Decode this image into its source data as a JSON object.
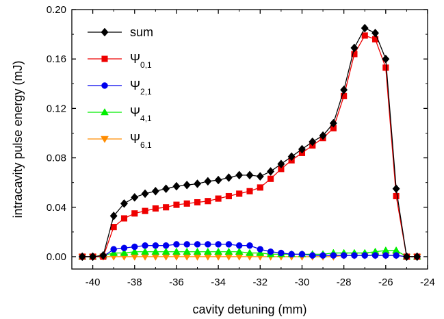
{
  "chart_data": {
    "type": "line",
    "xlabel": "cavity detuning (mm)",
    "ylabel": "intracavity pulse energy (mJ)",
    "xlim": [
      -41,
      -24
    ],
    "ylim": [
      -0.01,
      0.2
    ],
    "xticks": [
      -40,
      -38,
      -36,
      -34,
      -32,
      -30,
      -28,
      -26,
      -24
    ],
    "yticks": [
      0.0,
      0.04,
      0.08,
      0.12,
      0.16,
      0.2
    ],
    "xtick_labels": [
      "-40",
      "-38",
      "-36",
      "-34",
      "-32",
      "-30",
      "-28",
      "-26",
      "-24"
    ],
    "ytick_labels": [
      "0.00",
      "0.04",
      "0.08",
      "0.12",
      "0.16",
      "0.20"
    ],
    "grid": false,
    "legend_position": "top-left",
    "series": [
      {
        "name": "sum",
        "label_main": "sum",
        "label_sub": "",
        "color": "#000000",
        "marker": "diamond",
        "x": [
          -40.5,
          -40.0,
          -39.5,
          -39.0,
          -38.5,
          -38.0,
          -37.5,
          -37.0,
          -36.5,
          -36.0,
          -35.5,
          -35.0,
          -34.5,
          -34.0,
          -33.5,
          -33.0,
          -32.5,
          -32.0,
          -31.5,
          -31.0,
          -30.5,
          -30.0,
          -29.5,
          -29.0,
          -28.5,
          -28.0,
          -27.5,
          -27.0,
          -26.5,
          -26.0,
          -25.5,
          -25.0,
          -24.5
        ],
        "y": [
          0.0,
          0.0,
          0.001,
          0.033,
          0.043,
          0.048,
          0.051,
          0.053,
          0.055,
          0.057,
          0.058,
          0.059,
          0.061,
          0.062,
          0.064,
          0.066,
          0.066,
          0.065,
          0.069,
          0.075,
          0.081,
          0.087,
          0.093,
          0.098,
          0.108,
          0.135,
          0.169,
          0.185,
          0.181,
          0.16,
          0.055,
          0.0,
          0.0
        ]
      },
      {
        "name": "Ψ0,1",
        "label_main": "Ψ",
        "label_sub": "0,1",
        "color": "#ee0000",
        "marker": "square",
        "x": [
          -40.5,
          -40.0,
          -39.5,
          -39.0,
          -38.5,
          -38.0,
          -37.5,
          -37.0,
          -36.5,
          -36.0,
          -35.5,
          -35.0,
          -34.5,
          -34.0,
          -33.5,
          -33.0,
          -32.5,
          -32.0,
          -31.5,
          -31.0,
          -30.5,
          -30.0,
          -29.5,
          -29.0,
          -28.5,
          -28.0,
          -27.5,
          -27.0,
          -26.5,
          -26.0,
          -25.5,
          -25.0,
          -24.5
        ],
        "y": [
          0.0,
          0.0,
          0.0,
          0.024,
          0.031,
          0.035,
          0.037,
          0.039,
          0.04,
          0.042,
          0.043,
          0.044,
          0.045,
          0.047,
          0.049,
          0.051,
          0.053,
          0.056,
          0.063,
          0.071,
          0.078,
          0.084,
          0.09,
          0.096,
          0.104,
          0.13,
          0.164,
          0.179,
          0.176,
          0.153,
          0.049,
          0.0,
          0.0
        ]
      },
      {
        "name": "Ψ2,1",
        "label_main": "Ψ",
        "label_sub": "2,1",
        "color": "#0000ee",
        "marker": "circle",
        "x": [
          -40.5,
          -40.0,
          -39.5,
          -39.0,
          -38.5,
          -38.0,
          -37.5,
          -37.0,
          -36.5,
          -36.0,
          -35.5,
          -35.0,
          -34.5,
          -34.0,
          -33.5,
          -33.0,
          -32.5,
          -32.0,
          -31.5,
          -31.0,
          -30.5,
          -30.0,
          -29.5,
          -29.0,
          -28.5,
          -28.0,
          -27.5,
          -27.0,
          -26.5,
          -26.0,
          -25.5,
          -25.0,
          -24.5
        ],
        "y": [
          0.0,
          0.0,
          0.0,
          0.006,
          0.007,
          0.008,
          0.009,
          0.009,
          0.009,
          0.01,
          0.01,
          0.01,
          0.01,
          0.01,
          0.01,
          0.009,
          0.009,
          0.006,
          0.004,
          0.003,
          0.002,
          0.002,
          0.001,
          0.001,
          0.001,
          0.001,
          0.001,
          0.001,
          0.001,
          0.001,
          0.001,
          0.0,
          0.0
        ]
      },
      {
        "name": "Ψ4,1",
        "label_main": "Ψ",
        "label_sub": "4,1",
        "color": "#00ee00",
        "marker": "triangle-up",
        "x": [
          -40.5,
          -40.0,
          -39.5,
          -39.0,
          -38.5,
          -38.0,
          -37.5,
          -37.0,
          -36.5,
          -36.0,
          -35.5,
          -35.0,
          -34.5,
          -34.0,
          -33.5,
          -33.0,
          -32.5,
          -32.0,
          -31.5,
          -31.0,
          -30.5,
          -30.0,
          -29.5,
          -29.0,
          -28.5,
          -28.0,
          -27.5,
          -27.0,
          -26.5,
          -26.0,
          -25.5,
          -25.0,
          -24.5
        ],
        "y": [
          0.0,
          0.0,
          0.001,
          0.003,
          0.003,
          0.004,
          0.004,
          0.004,
          0.004,
          0.004,
          0.004,
          0.004,
          0.004,
          0.004,
          0.004,
          0.004,
          0.003,
          0.003,
          0.002,
          0.002,
          0.002,
          0.002,
          0.002,
          0.002,
          0.003,
          0.003,
          0.003,
          0.003,
          0.004,
          0.005,
          0.005,
          0.0,
          0.0
        ]
      },
      {
        "name": "Ψ6,1",
        "label_main": "Ψ",
        "label_sub": "6,1",
        "color": "#ff8c00",
        "marker": "triangle-down",
        "x": [
          -40.5,
          -40.0,
          -39.5,
          -39.0,
          -38.5,
          -38.0,
          -37.5,
          -37.0,
          -36.5,
          -36.0,
          -35.5,
          -35.0,
          -34.5,
          -34.0,
          -33.5,
          -33.0,
          -32.5,
          -32.0,
          -31.5,
          -31.0,
          -30.5,
          -30.0,
          -29.5,
          -29.0,
          -28.5,
          -28.0,
          -27.5,
          -27.0,
          -26.5,
          -26.0,
          -25.5,
          -25.0,
          -24.5
        ],
        "y": [
          0.0,
          0.0,
          0.0,
          0.0,
          0.0,
          0.0,
          0.0,
          0.0,
          0.0,
          0.0,
          0.0,
          0.0,
          0.0,
          0.0,
          0.0,
          0.0,
          0.0,
          0.0,
          0.0,
          0.0,
          0.0,
          0.0,
          0.0,
          0.0,
          0.0,
          0.001,
          0.001,
          0.001,
          0.001,
          0.001,
          0.001,
          0.0,
          0.0
        ]
      }
    ]
  }
}
